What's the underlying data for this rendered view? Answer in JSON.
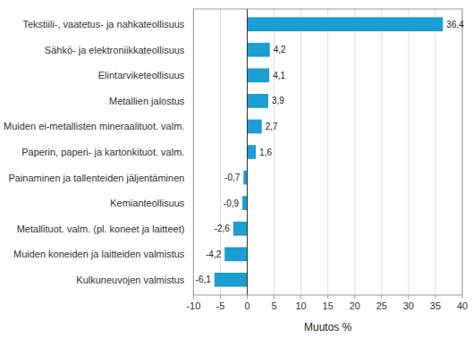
{
  "chart_data": {
    "type": "bar",
    "orientation": "horizontal",
    "categories": [
      "Kulkuneuvojen valmistus",
      "Muiden koneiden ja laitteiden valmistus",
      "Metallituot. valm. (pl. koneet ja laitteet)",
      "Kemianteollisuus",
      "Painaminen ja tallenteiden jäljentäminen",
      "Paperin, paperi- ja kartonkituot. valm.",
      "Muiden ei-metallisten mineraalituot. valm.",
      "Metallien jalostus",
      "Elintarviketeollisuus",
      "Sähkö- ja elektroniikkateollisuus",
      "Tekstiili-, vaatetus- ja nahkateollisuus"
    ],
    "values": [
      -6.1,
      -4.2,
      -2.6,
      -0.9,
      -0.7,
      1.6,
      2.7,
      3.9,
      4.1,
      4.2,
      36.4
    ],
    "value_labels": [
      "-6,1",
      "-4,2",
      "-2,6",
      "-0,9",
      "-0,7",
      "1,6",
      "2,7",
      "3,9",
      "4,1",
      "4,2",
      "36,4"
    ],
    "data_labels": true,
    "color": "#1a9ed4",
    "xlabel": "Muutos %",
    "xlim": [
      -10,
      40
    ],
    "xticks": [
      -10,
      -5,
      0,
      5,
      10,
      15,
      20,
      25,
      30,
      35,
      40
    ],
    "grid": true
  }
}
